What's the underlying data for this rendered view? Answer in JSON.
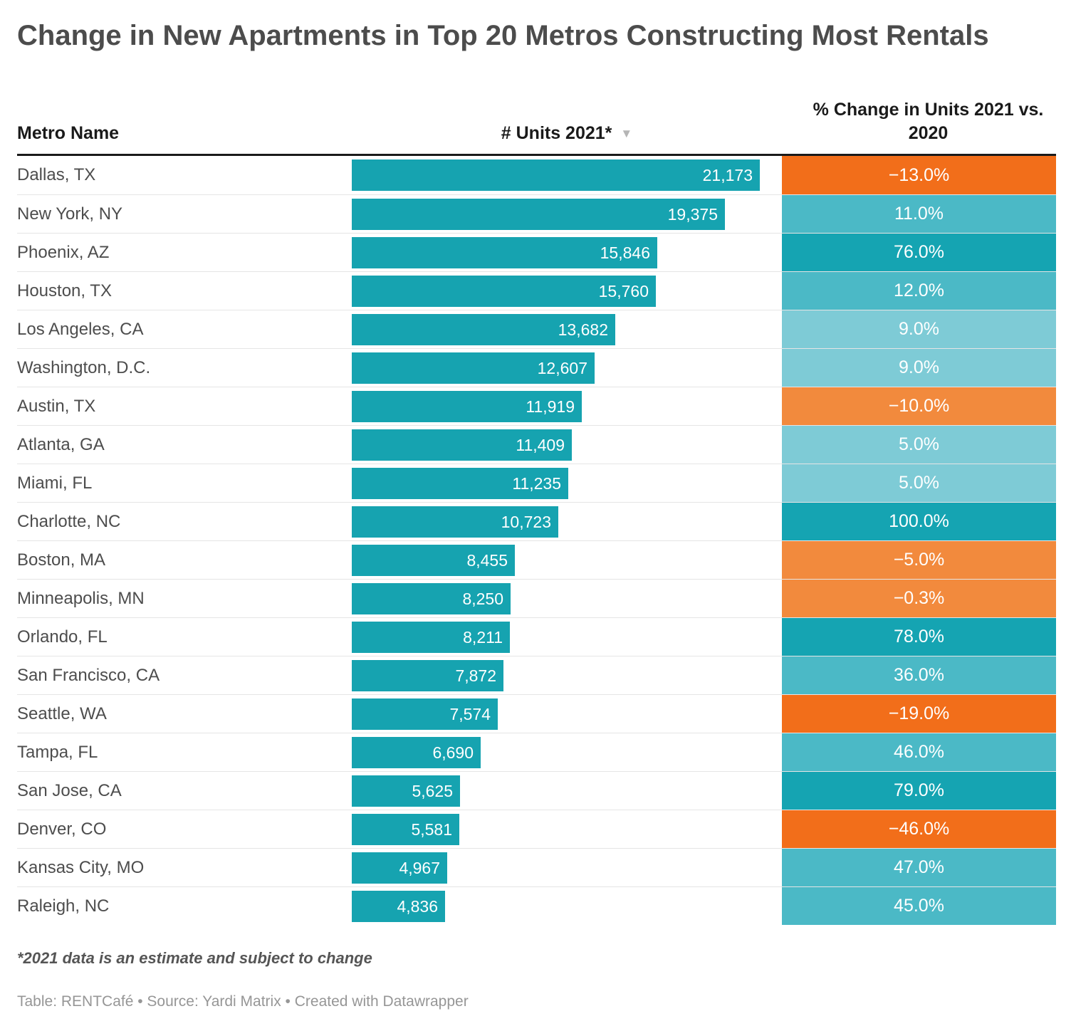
{
  "title": "Change in New Apartments in Top 20 Metros Constructing Most Rentals",
  "columns": {
    "metro": "Metro Name",
    "units": "# Units 2021*",
    "change": "% Change in Units 2021 vs. 2020"
  },
  "sort_icon": "▼",
  "colors": {
    "bar_fill": "#16a3b0",
    "teal_dark": "#15a4b2",
    "teal_medium": "#4bb9c6",
    "teal_light": "#7ecbd6",
    "orange_strong": "#f26e1a",
    "orange_light": "#f28a3d",
    "cell_text": "#ffffff"
  },
  "rows": [
    {
      "metro": "Dallas, TX",
      "units": 21173,
      "units_label": "21,173",
      "change_label": "−13.0%",
      "cell_color": "#f26e1a"
    },
    {
      "metro": "New York, NY",
      "units": 19375,
      "units_label": "19,375",
      "change_label": "11.0%",
      "cell_color": "#4bb9c6"
    },
    {
      "metro": "Phoenix, AZ",
      "units": 15846,
      "units_label": "15,846",
      "change_label": "76.0%",
      "cell_color": "#15a4b2"
    },
    {
      "metro": "Houston, TX",
      "units": 15760,
      "units_label": "15,760",
      "change_label": "12.0%",
      "cell_color": "#4bb9c6"
    },
    {
      "metro": "Los Angeles, CA",
      "units": 13682,
      "units_label": "13,682",
      "change_label": "9.0%",
      "cell_color": "#7ecbd6"
    },
    {
      "metro": "Washington, D.C.",
      "units": 12607,
      "units_label": "12,607",
      "change_label": "9.0%",
      "cell_color": "#7ecbd6"
    },
    {
      "metro": "Austin, TX",
      "units": 11919,
      "units_label": "11,919",
      "change_label": "−10.0%",
      "cell_color": "#f28a3d"
    },
    {
      "metro": "Atlanta, GA",
      "units": 11409,
      "units_label": "11,409",
      "change_label": "5.0%",
      "cell_color": "#7ecbd6"
    },
    {
      "metro": "Miami, FL",
      "units": 11235,
      "units_label": "11,235",
      "change_label": "5.0%",
      "cell_color": "#7ecbd6"
    },
    {
      "metro": "Charlotte, NC",
      "units": 10723,
      "units_label": "10,723",
      "change_label": "100.0%",
      "cell_color": "#15a4b2"
    },
    {
      "metro": "Boston, MA",
      "units": 8455,
      "units_label": "8,455",
      "change_label": "−5.0%",
      "cell_color": "#f28a3d"
    },
    {
      "metro": "Minneapolis, MN",
      "units": 8250,
      "units_label": "8,250",
      "change_label": "−0.3%",
      "cell_color": "#f28a3d"
    },
    {
      "metro": "Orlando, FL",
      "units": 8211,
      "units_label": "8,211",
      "change_label": "78.0%",
      "cell_color": "#15a4b2"
    },
    {
      "metro": "San Francisco, CA",
      "units": 7872,
      "units_label": "7,872",
      "change_label": "36.0%",
      "cell_color": "#4bb9c6"
    },
    {
      "metro": "Seattle, WA",
      "units": 7574,
      "units_label": "7,574",
      "change_label": "−19.0%",
      "cell_color": "#f26e1a"
    },
    {
      "metro": "Tampa, FL",
      "units": 6690,
      "units_label": "6,690",
      "change_label": "46.0%",
      "cell_color": "#4bb9c6"
    },
    {
      "metro": "San Jose, CA",
      "units": 5625,
      "units_label": "5,625",
      "change_label": "79.0%",
      "cell_color": "#15a4b2"
    },
    {
      "metro": "Denver, CO",
      "units": 5581,
      "units_label": "5,581",
      "change_label": "−46.0%",
      "cell_color": "#f26e1a"
    },
    {
      "metro": "Kansas City, MO",
      "units": 4967,
      "units_label": "4,967",
      "change_label": "47.0%",
      "cell_color": "#4bb9c6"
    },
    {
      "metro": "Raleigh, NC",
      "units": 4836,
      "units_label": "4,836",
      "change_label": "45.0%",
      "cell_color": "#4bb9c6"
    }
  ],
  "footnote": "*2021 data is an estimate and subject to change",
  "attribution": "Table: RENTCafé • Source: Yardi Matrix • Created with Datawrapper",
  "chart_data": {
    "type": "table",
    "title": "Change in New Apartments in Top 20 Metros Constructing Most Rentals",
    "columns": [
      "Metro Name",
      "# Units 2021*",
      "% Change in Units 2021 vs. 2020"
    ],
    "sorted_by": "# Units 2021*",
    "sort_order": "descending",
    "bar_axis_max": 21173,
    "rows": [
      [
        "Dallas, TX",
        21173,
        -13.0
      ],
      [
        "New York, NY",
        19375,
        11.0
      ],
      [
        "Phoenix, AZ",
        15846,
        76.0
      ],
      [
        "Houston, TX",
        15760,
        12.0
      ],
      [
        "Los Angeles, CA",
        13682,
        9.0
      ],
      [
        "Washington, D.C.",
        12607,
        9.0
      ],
      [
        "Austin, TX",
        11919,
        -10.0
      ],
      [
        "Atlanta, GA",
        11409,
        5.0
      ],
      [
        "Miami, FL",
        11235,
        5.0
      ],
      [
        "Charlotte, NC",
        10723,
        100.0
      ],
      [
        "Boston, MA",
        8455,
        -5.0
      ],
      [
        "Minneapolis, MN",
        8250,
        -0.3
      ],
      [
        "Orlando, FL",
        8211,
        78.0
      ],
      [
        "San Francisco, CA",
        7872,
        36.0
      ],
      [
        "Seattle, WA",
        7574,
        -19.0
      ],
      [
        "Tampa, FL",
        6690,
        46.0
      ],
      [
        "San Jose, CA",
        5625,
        79.0
      ],
      [
        "Denver, CO",
        5581,
        -46.0
      ],
      [
        "Kansas City, MO",
        4967,
        47.0
      ],
      [
        "Raleigh, NC",
        4836,
        45.0
      ]
    ],
    "notes": {
      "footnote": "*2021 data is an estimate and subject to change",
      "source": "Table: RENTCafé • Source: Yardi Matrix • Created with Datawrapper"
    }
  }
}
